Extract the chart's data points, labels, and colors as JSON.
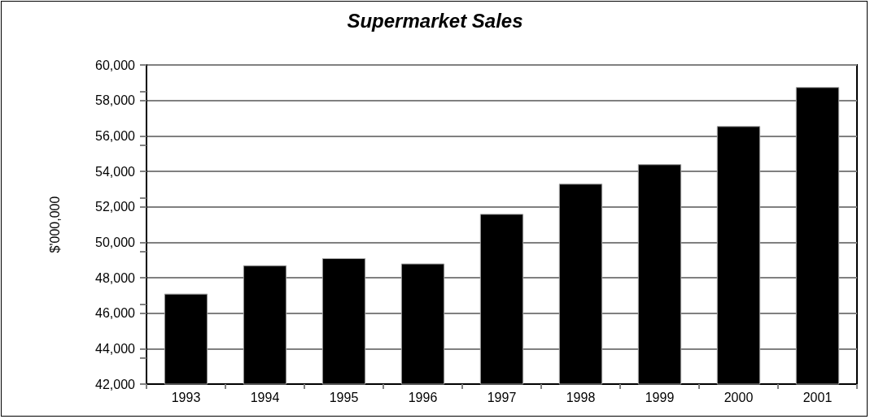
{
  "chart_data": {
    "type": "bar",
    "title": "Supermarket Sales",
    "ylabel": "$'000,000",
    "categories": [
      "1993",
      "1994",
      "1995",
      "1996",
      "1997",
      "1998",
      "1999",
      "2000",
      "2001"
    ],
    "values": [
      47100,
      48700,
      49100,
      48800,
      51600,
      53300,
      54400,
      56550,
      58750
    ],
    "color": "#000000",
    "ylim": [
      42000,
      60000
    ],
    "yticks": [
      {
        "value": 42000,
        "label": "42,000"
      },
      {
        "value": 44000,
        "label": "44,000"
      },
      {
        "value": 46000,
        "label": "46,000"
      },
      {
        "value": 48000,
        "label": "48,000"
      },
      {
        "value": 50000,
        "label": "50,000"
      },
      {
        "value": 52000,
        "label": "52,000"
      },
      {
        "value": 54000,
        "label": "54,000"
      },
      {
        "value": 56000,
        "label": "56,000"
      },
      {
        "value": 58000,
        "label": "58,000"
      },
      {
        "value": 60000,
        "label": "60,000"
      }
    ],
    "grid": "y"
  }
}
